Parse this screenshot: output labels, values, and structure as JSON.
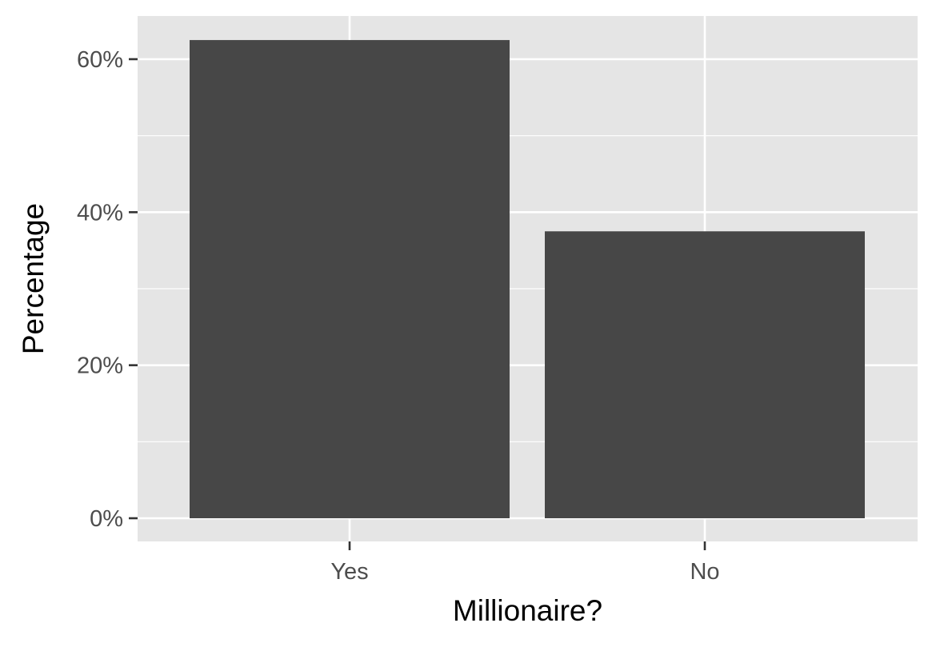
{
  "chart_data": {
    "type": "bar",
    "categories": [
      "Yes",
      "No"
    ],
    "values": [
      62.5,
      37.5
    ],
    "value_format": "percent",
    "title": "",
    "xlabel": "Millionaire?",
    "ylabel": "Percentage",
    "ylim": [
      0,
      65
    ],
    "yticks": [
      0,
      20,
      40,
      60
    ],
    "ytick_labels": [
      "0%",
      "20%",
      "40%",
      "60%"
    ],
    "grid": true,
    "legend": "none",
    "colors": {
      "bar": "#474747",
      "panel": "#e5e5e5",
      "grid": "#ffffff",
      "ticks": "#333333"
    }
  }
}
